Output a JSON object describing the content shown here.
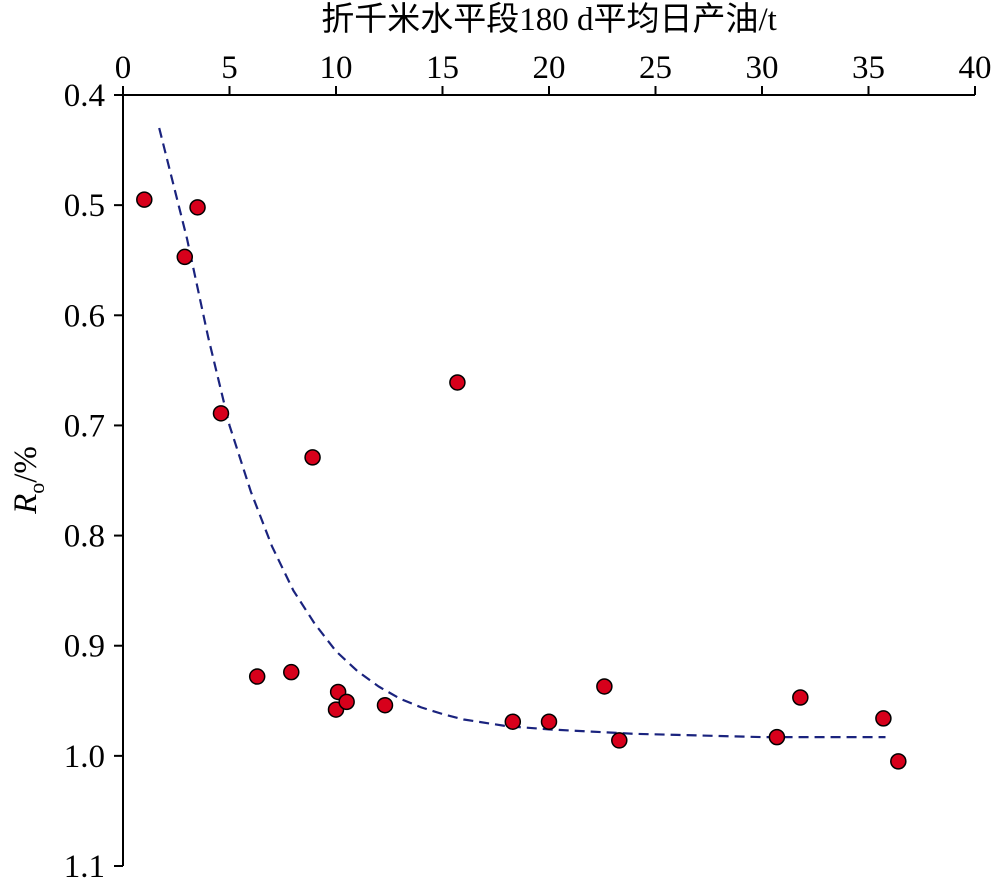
{
  "chart_data": {
    "type": "scatter",
    "title": "",
    "xlabel": "折千米水平段180 d平均日产油/t",
    "ylabel": {
      "symbol": "R",
      "subscript": "o",
      "unit": "/%"
    },
    "x_axis_position": "top",
    "y_axis_inverted": true,
    "xlim": [
      0,
      40
    ],
    "ylim": [
      0.4,
      1.1
    ],
    "xticks": [
      "0",
      "5",
      "10",
      "15",
      "20",
      "25",
      "30",
      "35",
      "40"
    ],
    "yticks": [
      "0.4",
      "0.5",
      "0.6",
      "0.7",
      "0.8",
      "0.9",
      "1.0",
      "1.1"
    ],
    "grid": false,
    "legend": "none",
    "marker_color": "#d7001b",
    "marker_edge_color": "#000000",
    "fit_line_color": "#1a237e",
    "fit_line_style": "dashed",
    "series": [
      {
        "kind": "points",
        "points": [
          {
            "x": 1.0,
            "y": 0.495
          },
          {
            "x": 2.9,
            "y": 0.547
          },
          {
            "x": 3.5,
            "y": 0.502
          },
          {
            "x": 4.6,
            "y": 0.689
          },
          {
            "x": 6.3,
            "y": 0.928
          },
          {
            "x": 7.9,
            "y": 0.924
          },
          {
            "x": 8.9,
            "y": 0.729
          },
          {
            "x": 10.0,
            "y": 0.958
          },
          {
            "x": 10.1,
            "y": 0.942
          },
          {
            "x": 10.5,
            "y": 0.951
          },
          {
            "x": 12.3,
            "y": 0.954
          },
          {
            "x": 15.7,
            "y": 0.661
          },
          {
            "x": 18.3,
            "y": 0.969
          },
          {
            "x": 20.0,
            "y": 0.969
          },
          {
            "x": 22.6,
            "y": 0.937
          },
          {
            "x": 23.3,
            "y": 0.986
          },
          {
            "x": 30.7,
            "y": 0.983
          },
          {
            "x": 31.8,
            "y": 0.947
          },
          {
            "x": 35.7,
            "y": 0.966
          },
          {
            "x": 36.4,
            "y": 1.005
          }
        ]
      },
      {
        "kind": "trend",
        "points": [
          {
            "x": 1.7,
            "y": 0.43
          },
          {
            "x": 3.0,
            "y": 0.53
          },
          {
            "x": 4.0,
            "y": 0.62
          },
          {
            "x": 5.0,
            "y": 0.7
          },
          {
            "x": 6.0,
            "y": 0.76
          },
          {
            "x": 7.0,
            "y": 0.81
          },
          {
            "x": 8.0,
            "y": 0.85
          },
          {
            "x": 9.0,
            "y": 0.88
          },
          {
            "x": 10.0,
            "y": 0.905
          },
          {
            "x": 11.0,
            "y": 0.923
          },
          {
            "x": 12.0,
            "y": 0.937
          },
          {
            "x": 13.0,
            "y": 0.948
          },
          {
            "x": 14.0,
            "y": 0.956
          },
          {
            "x": 15.0,
            "y": 0.962
          },
          {
            "x": 16.0,
            "y": 0.967
          },
          {
            "x": 18.0,
            "y": 0.973
          },
          {
            "x": 20.0,
            "y": 0.976
          },
          {
            "x": 22.0,
            "y": 0.978
          },
          {
            "x": 24.0,
            "y": 0.98
          },
          {
            "x": 26.0,
            "y": 0.981
          },
          {
            "x": 28.0,
            "y": 0.982
          },
          {
            "x": 30.0,
            "y": 0.983
          },
          {
            "x": 33.0,
            "y": 0.983
          },
          {
            "x": 35.8,
            "y": 0.983
          }
        ]
      }
    ]
  }
}
